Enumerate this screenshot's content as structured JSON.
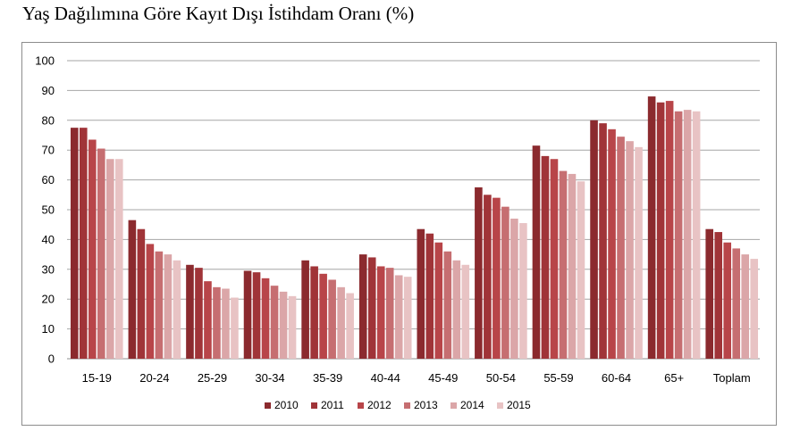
{
  "title": "Yaş Dağılımına Göre Kayıt Dışı İstihdam Oranı (%)",
  "chart_data": {
    "type": "bar",
    "title": "Yaş Dağılımına Göre Kayıt Dışı İstihdam Oranı (%)",
    "xlabel": "",
    "ylabel": "",
    "ylim": [
      0,
      100
    ],
    "yticks": [
      0,
      10,
      20,
      30,
      40,
      50,
      60,
      70,
      80,
      90,
      100
    ],
    "grid": true,
    "legend": "bottom",
    "categories": [
      "15-19",
      "20-24",
      "25-29",
      "30-34",
      "35-39",
      "40-44",
      "45-49",
      "50-54",
      "55-59",
      "60-64",
      "65+",
      "Toplam"
    ],
    "series": [
      {
        "name": "2010",
        "color": "#8b2a2e",
        "values": [
          77.5,
          46.5,
          31.5,
          29.5,
          33.0,
          35.0,
          43.5,
          57.5,
          71.5,
          80.0,
          88.0,
          43.5
        ]
      },
      {
        "name": "2011",
        "color": "#a03438",
        "values": [
          77.5,
          43.5,
          30.5,
          29.0,
          31.0,
          34.0,
          42.0,
          55.0,
          68.0,
          79.0,
          86.0,
          42.5
        ]
      },
      {
        "name": "2012",
        "color": "#b84549",
        "values": [
          73.5,
          38.5,
          26.0,
          27.0,
          28.5,
          31.0,
          39.0,
          54.0,
          67.0,
          77.0,
          86.5,
          39.0
        ]
      },
      {
        "name": "2013",
        "color": "#c66e71",
        "values": [
          70.5,
          36.0,
          24.0,
          24.5,
          26.5,
          30.5,
          36.0,
          51.0,
          63.0,
          74.5,
          83.0,
          37.0
        ]
      },
      {
        "name": "2014",
        "color": "#dba6a8",
        "values": [
          67.0,
          35.0,
          23.5,
          22.5,
          24.0,
          28.0,
          33.0,
          47.0,
          62.0,
          73.0,
          83.5,
          35.0
        ]
      },
      {
        "name": "2015",
        "color": "#e8c3c4",
        "values": [
          67.0,
          33.0,
          20.5,
          21.0,
          22.0,
          27.5,
          31.5,
          45.5,
          59.5,
          71.0,
          83.0,
          33.5
        ]
      }
    ]
  }
}
